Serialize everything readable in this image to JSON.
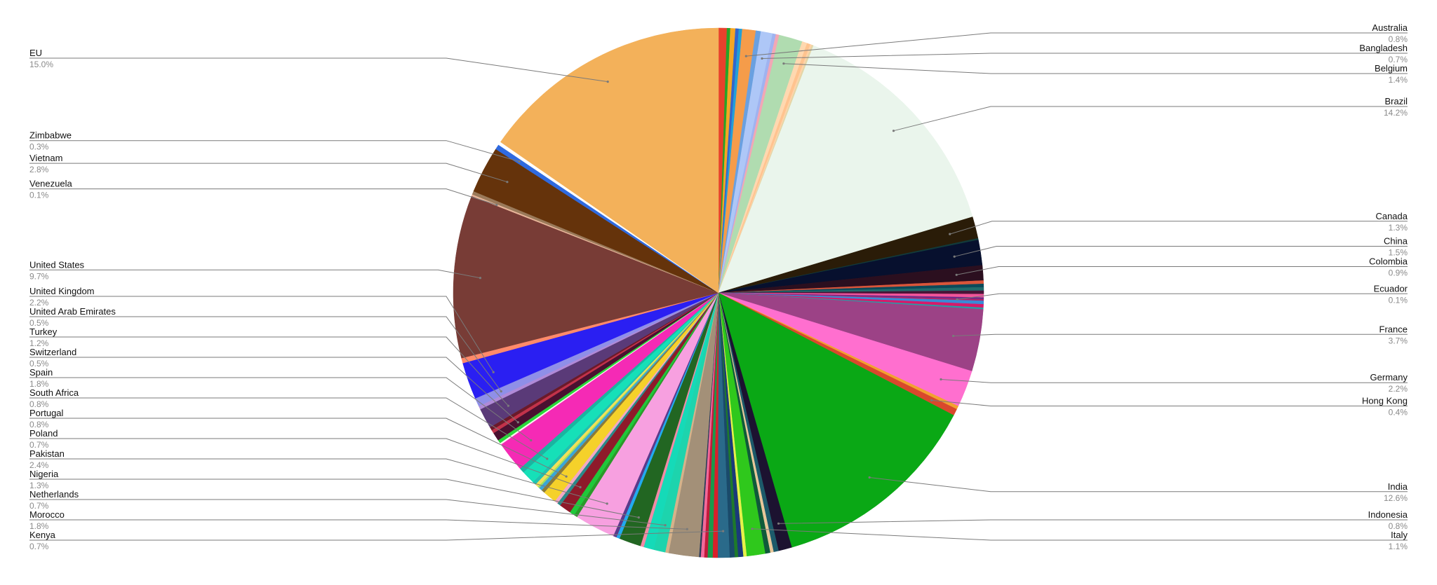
{
  "chart_data": {
    "type": "pie",
    "title": "",
    "legend": "none",
    "slices": [
      {
        "label": "",
        "value": 0.5,
        "color": "#e8412c"
      },
      {
        "label": "",
        "value": 0.2,
        "color": "#27a327"
      },
      {
        "label": "",
        "value": 0.3,
        "color": "#f5a623"
      },
      {
        "label": "",
        "value": 0.2,
        "color": "#3366cc"
      },
      {
        "label": "",
        "value": 0.2,
        "color": "#22a0d8"
      },
      {
        "label": "Australia",
        "value": 0.8,
        "color": "#f59c4a"
      },
      {
        "label": "",
        "value": 0.3,
        "color": "#6aa0e0"
      },
      {
        "label": "Bangladesh",
        "value": 0.7,
        "color": "#aec7f7"
      },
      {
        "label": "",
        "value": 0.2,
        "color": "#9fb3f0"
      },
      {
        "label": "",
        "value": 0.2,
        "color": "#f2a7b5"
      },
      {
        "label": "Belgium",
        "value": 1.4,
        "color": "#b0dcb0"
      },
      {
        "label": "",
        "value": 0.3,
        "color": "#ffd8b0"
      },
      {
        "label": "",
        "value": 0.2,
        "color": "#ffc38f"
      },
      {
        "label": "",
        "value": 0.1,
        "color": "#ffd2a8"
      },
      {
        "label": "",
        "value": 0.1,
        "color": "#e4d6a7"
      },
      {
        "label": "Brazil",
        "value": 14.2,
        "color": "#eaf5ec"
      },
      {
        "label": "Canada",
        "value": 1.3,
        "color": "#2a1c08"
      },
      {
        "label": "",
        "value": 0.1,
        "color": "#123a3a"
      },
      {
        "label": "China",
        "value": 1.5,
        "color": "#07102e"
      },
      {
        "label": "Colombia",
        "value": 0.9,
        "color": "#2b0f1f"
      },
      {
        "label": "",
        "value": 0.2,
        "color": "#d9553a"
      },
      {
        "label": "",
        "value": 0.2,
        "color": "#0b4a5a"
      },
      {
        "label": "",
        "value": 0.2,
        "color": "#1f6b6b"
      },
      {
        "label": "",
        "value": 0.2,
        "color": "#4a1438"
      },
      {
        "label": "",
        "value": 0.2,
        "color": "#f2559a"
      },
      {
        "label": "",
        "value": 0.1,
        "color": "#6a2a8a"
      },
      {
        "label": "Ecuador",
        "value": 0.1,
        "color": "#b0246a"
      },
      {
        "label": "",
        "value": 0.2,
        "color": "#3a8ad6"
      },
      {
        "label": "",
        "value": 0.2,
        "color": "#d61a6a"
      },
      {
        "label": "",
        "value": 0.1,
        "color": "#2a9aa5"
      },
      {
        "label": "France",
        "value": 3.7,
        "color": "#9c4286"
      },
      {
        "label": "Germany",
        "value": 2.2,
        "color": "#ff6fcf"
      },
      {
        "label": "",
        "value": 0.2,
        "color": "#f2a230"
      },
      {
        "label": "Hong Kong",
        "value": 0.4,
        "color": "#d9482c"
      },
      {
        "label": "India",
        "value": 12.6,
        "color": "#0aa815"
      },
      {
        "label": "Indonesia",
        "value": 0.8,
        "color": "#1c1230"
      },
      {
        "label": "",
        "value": 0.3,
        "color": "#1c5a6a"
      },
      {
        "label": "",
        "value": 0.2,
        "color": "#e8c79a"
      },
      {
        "label": "",
        "value": 0.3,
        "color": "#0f5a3a"
      },
      {
        "label": "Italy",
        "value": 1.1,
        "color": "#2fc81c"
      },
      {
        "label": "",
        "value": 0.2,
        "color": "#e6f24a"
      },
      {
        "label": "",
        "value": 0.3,
        "color": "#1a3a7a"
      },
      {
        "label": "",
        "value": 0.2,
        "color": "#1e7a2a"
      },
      {
        "label": "",
        "value": 0.3,
        "color": "#1a4a6a"
      },
      {
        "label": "Kenya",
        "value": 0.7,
        "color": "#2a6a8a"
      },
      {
        "label": "",
        "value": 0.3,
        "color": "#d8202a"
      },
      {
        "label": "",
        "value": 0.3,
        "color": "#1a9a4a"
      },
      {
        "label": "",
        "value": 0.2,
        "color": "#c21a3a"
      },
      {
        "label": "",
        "value": 0.2,
        "color": "#f26a9a"
      },
      {
        "label": "",
        "value": 0.1,
        "color": "#2a3a5a"
      },
      {
        "label": "Morocco",
        "value": 1.8,
        "color": "#a39078"
      },
      {
        "label": "",
        "value": 0.2,
        "color": "#d5b28a"
      },
      {
        "label": "Netherlands",
        "value": 0.7,
        "color": "#1dd4ad"
      },
      {
        "label": "",
        "value": 0.6,
        "color": "#15dab8"
      },
      {
        "label": "",
        "value": 0.2,
        "color": "#f28aa5"
      },
      {
        "label": "Nigeria",
        "value": 1.3,
        "color": "#226622"
      },
      {
        "label": "",
        "value": 0.2,
        "color": "#22aaf0"
      },
      {
        "label": "",
        "value": 0.2,
        "color": "#5a3a8a"
      },
      {
        "label": "Pakistan",
        "value": 2.4,
        "color": "#f7a0e0"
      },
      {
        "label": "",
        "value": 0.2,
        "color": "#2a9a2a"
      },
      {
        "label": "",
        "value": 0.3,
        "color": "#1fc83a"
      },
      {
        "label": "Poland",
        "value": 0.7,
        "color": "#8e1a2a"
      },
      {
        "label": "",
        "value": 0.2,
        "color": "#2a8a8a"
      },
      {
        "label": "",
        "value": 0.2,
        "color": "#f2a7c5"
      },
      {
        "label": "Portugal",
        "value": 0.8,
        "color": "#f5d12a"
      },
      {
        "label": "",
        "value": 0.2,
        "color": "#8a7a3a"
      },
      {
        "label": "",
        "value": 0.2,
        "color": "#3aa5d8"
      },
      {
        "label": "",
        "value": 0.1,
        "color": "#a5e05a"
      },
      {
        "label": "",
        "value": 0.2,
        "color": "#f2e05a"
      },
      {
        "label": "",
        "value": 0.2,
        "color": "#22c0b0"
      },
      {
        "label": "South Africa",
        "value": 0.8,
        "color": "#16e0b8"
      },
      {
        "label": "",
        "value": 0.3,
        "color": "#1ab5a0"
      },
      {
        "label": "Spain",
        "value": 1.8,
        "color": "#f52ab5"
      },
      {
        "label": "",
        "value": 0.1,
        "color": "#fff0f0"
      },
      {
        "label": "",
        "value": 0.2,
        "color": "#2ad83a"
      },
      {
        "label": "Switzerland",
        "value": 0.5,
        "color": "#4a1030"
      },
      {
        "label": "",
        "value": 0.2,
        "color": "#c2324a"
      },
      {
        "label": "",
        "value": 0.2,
        "color": "#6a1a2a"
      },
      {
        "label": "Turkey",
        "value": 1.2,
        "color": "#5a3a78"
      },
      {
        "label": "",
        "value": 0.2,
        "color": "#b08ad8"
      },
      {
        "label": "United Arab Emirates",
        "value": 0.5,
        "color": "#8f8fe8"
      },
      {
        "label": "United Kingdom",
        "value": 2.2,
        "color": "#2a1ff2"
      },
      {
        "label": "",
        "value": 0.3,
        "color": "#ff8a6a"
      },
      {
        "label": "United States",
        "value": 9.7,
        "color": "#783c36"
      },
      {
        "label": "Venezuela",
        "value": 0.1,
        "color": "#e8b59a"
      },
      {
        "label": "",
        "value": 0.2,
        "color": "#9a7a5a"
      },
      {
        "label": "Vietnam",
        "value": 2.8,
        "color": "#65330b"
      },
      {
        "label": "Zimbabwe",
        "value": 0.3,
        "color": "#2f6ae0"
      },
      {
        "label": "",
        "value": 0.2,
        "color": "#ffffff"
      },
      {
        "label": "EU",
        "value": 15.0,
        "color": "#f3b15a"
      }
    ],
    "labels": [
      {
        "name": "Australia",
        "pct": "0.8%",
        "side": "right"
      },
      {
        "name": "Bangladesh",
        "pct": "0.7%",
        "side": "right"
      },
      {
        "name": "Belgium",
        "pct": "1.4%",
        "side": "right"
      },
      {
        "name": "Brazil",
        "pct": "14.2%",
        "side": "right"
      },
      {
        "name": "Canada",
        "pct": "1.3%",
        "side": "right"
      },
      {
        "name": "China",
        "pct": "1.5%",
        "side": "right"
      },
      {
        "name": "Colombia",
        "pct": "0.9%",
        "side": "right"
      },
      {
        "name": "Ecuador",
        "pct": "0.1%",
        "side": "right"
      },
      {
        "name": "France",
        "pct": "3.7%",
        "side": "right"
      },
      {
        "name": "Germany",
        "pct": "2.2%",
        "side": "right"
      },
      {
        "name": "Hong Kong",
        "pct": "0.4%",
        "side": "right"
      },
      {
        "name": "India",
        "pct": "12.6%",
        "side": "right"
      },
      {
        "name": "Indonesia",
        "pct": "0.8%",
        "side": "right"
      },
      {
        "name": "Italy",
        "pct": "1.1%",
        "side": "right"
      },
      {
        "name": "EU",
        "pct": "15.0%",
        "side": "left"
      },
      {
        "name": "Zimbabwe",
        "pct": "0.3%",
        "side": "left"
      },
      {
        "name": "Vietnam",
        "pct": "2.8%",
        "side": "left"
      },
      {
        "name": "Venezuela",
        "pct": "0.1%",
        "side": "left"
      },
      {
        "name": "United States",
        "pct": "9.7%",
        "side": "left"
      },
      {
        "name": "United Kingdom",
        "pct": "2.2%",
        "side": "left"
      },
      {
        "name": "United Arab Emirates",
        "pct": "0.5%",
        "side": "left"
      },
      {
        "name": "Turkey",
        "pct": "1.2%",
        "side": "left"
      },
      {
        "name": "Switzerland",
        "pct": "0.5%",
        "side": "left"
      },
      {
        "name": "Spain",
        "pct": "1.8%",
        "side": "left"
      },
      {
        "name": "South Africa",
        "pct": "0.8%",
        "side": "left"
      },
      {
        "name": "Portugal",
        "pct": "0.8%",
        "side": "left"
      },
      {
        "name": "Poland",
        "pct": "0.7%",
        "side": "left"
      },
      {
        "name": "Pakistan",
        "pct": "2.4%",
        "side": "left"
      },
      {
        "name": "Nigeria",
        "pct": "1.3%",
        "side": "left"
      },
      {
        "name": "Netherlands",
        "pct": "0.7%",
        "side": "left"
      },
      {
        "name": "Morocco",
        "pct": "1.8%",
        "side": "left"
      },
      {
        "name": "Kenya",
        "pct": "0.7%",
        "side": "left"
      }
    ]
  }
}
